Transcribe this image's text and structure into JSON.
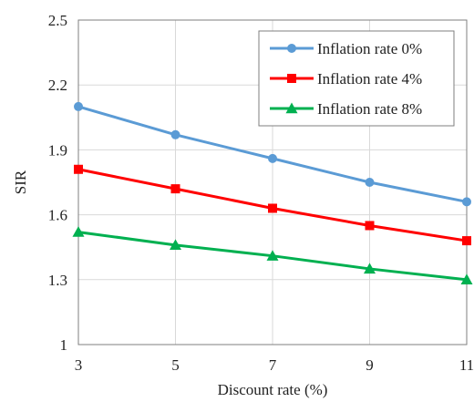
{
  "chart_data": {
    "type": "line",
    "title": "",
    "xlabel": "Discount rate (%)",
    "ylabel": "SIR",
    "x": [
      3,
      5,
      7,
      9,
      11
    ],
    "xlim": [
      3,
      11
    ],
    "ylim": [
      1,
      2.5
    ],
    "xticks": [
      "3",
      "5",
      "7",
      "9",
      "11"
    ],
    "yticks": [
      "1",
      "1.3",
      "1.6",
      "1.9",
      "2.2",
      "2.5"
    ],
    "ytick_values": [
      1,
      1.3,
      1.6,
      1.9,
      2.2,
      2.5
    ],
    "grid": true,
    "legend_position": "top-right",
    "series": [
      {
        "name": "Inflation rate 0%",
        "values": [
          2.1,
          1.97,
          1.86,
          1.75,
          1.66
        ],
        "color": "#5b9bd5",
        "marker": "circle"
      },
      {
        "name": "Inflation rate 4%",
        "values": [
          1.81,
          1.72,
          1.63,
          1.55,
          1.48
        ],
        "color": "#ff0000",
        "marker": "square"
      },
      {
        "name": "Inflation rate 8%",
        "values": [
          1.52,
          1.46,
          1.41,
          1.35,
          1.3
        ],
        "color": "#00b050",
        "marker": "triangle"
      }
    ]
  }
}
